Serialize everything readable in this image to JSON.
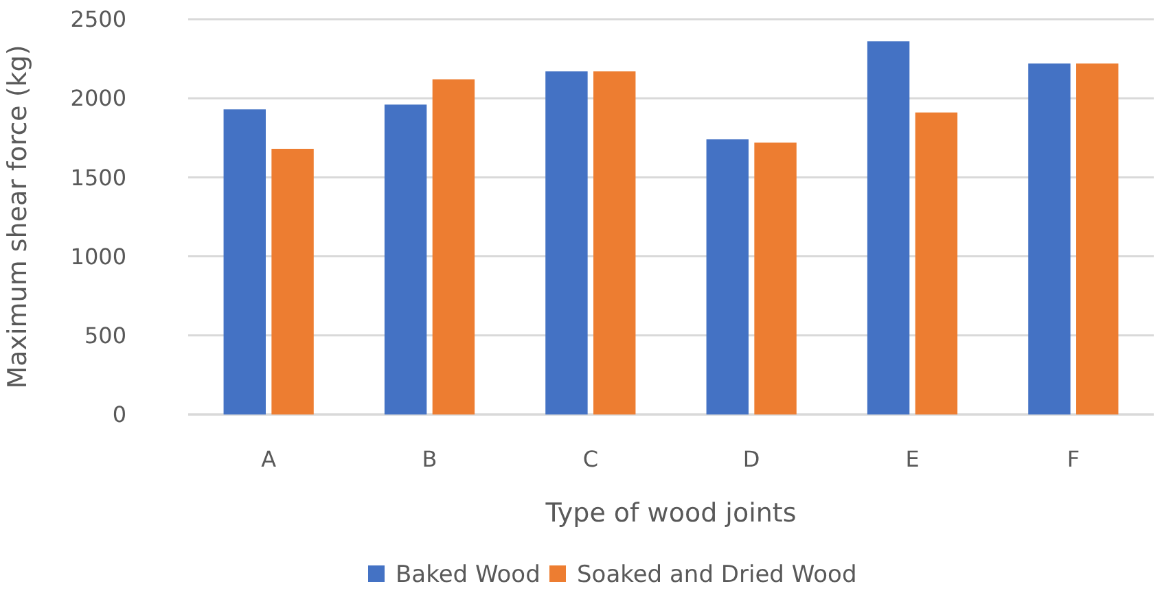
{
  "chart_data": {
    "type": "bar",
    "xlabel": "Type of wood joints",
    "ylabel": "Maximum shear force (kg)",
    "categories": [
      "A",
      "B",
      "C",
      "D",
      "E",
      "F"
    ],
    "series": [
      {
        "name": "Baked Wood",
        "color": "#4472c4",
        "values": [
          1930,
          1960,
          2170,
          1740,
          2360,
          2220
        ]
      },
      {
        "name": "Soaked and Dried Wood",
        "color": "#ed7d31",
        "values": [
          1680,
          2120,
          2170,
          1720,
          1910,
          2220
        ]
      }
    ],
    "ylim": [
      0,
      2500
    ],
    "yticks": [
      0,
      500,
      1000,
      1500,
      2000,
      2500
    ],
    "grid": "y",
    "legend": "bottom"
  }
}
